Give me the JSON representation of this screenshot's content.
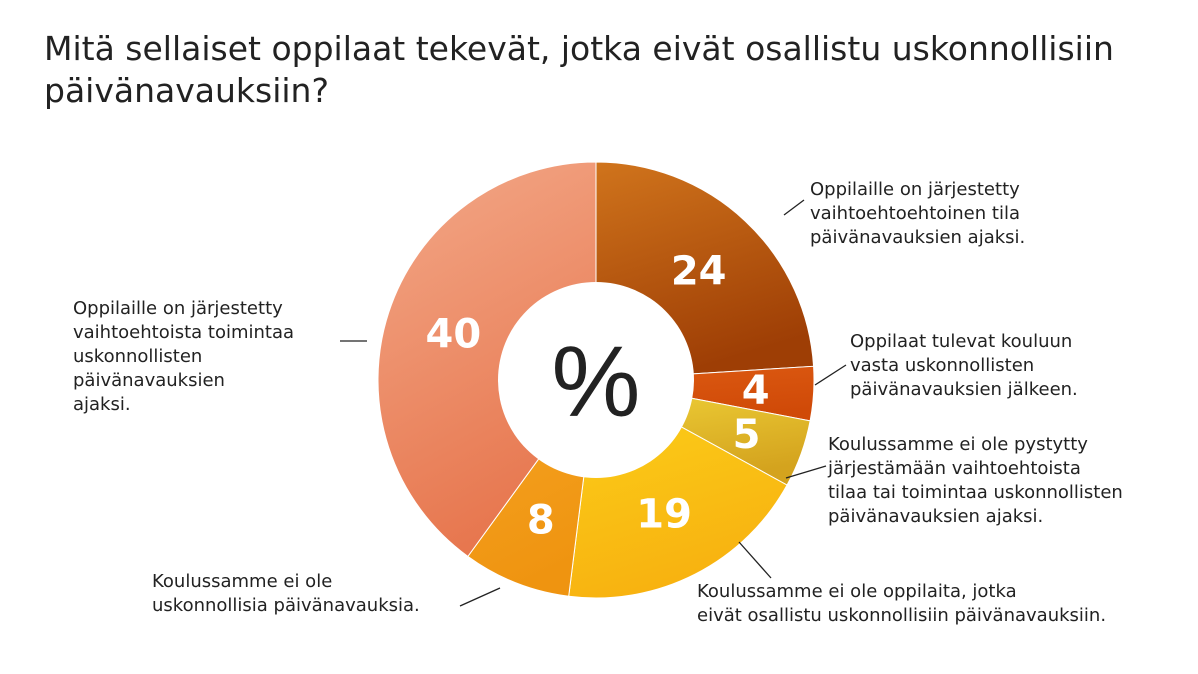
{
  "title": "Mitä sellaiset oppilaat tekevät, jotka eivät osallistu uskonnollisiin päivänavauksiin?",
  "center_label": "%",
  "chart_data": {
    "type": "pie",
    "style": "donut",
    "title": "Mitä sellaiset oppilaat tekevät, jotka eivät osallistu uskonnollisiin päivänavauksiin?",
    "unit": "%",
    "slices": [
      {
        "label": "Oppilaille on järjestetty vaihtoehtoehtoinen tila päivänavauksien ajaksi.",
        "value": 24,
        "color_start": "#d0741c",
        "color_end": "#9e3e05"
      },
      {
        "label": "Oppilaat tulevat kouluun vasta uskonnollisten päivänavauksien jälkeen.",
        "value": 4,
        "color_start": "#dc5a12",
        "color_end": "#d04a08"
      },
      {
        "label": "Koulussamme ei ole pystytty järjestämään vaihtoehtoista tilaa tai toimintaa uskonnollisten päivänavauksien ajaksi.",
        "value": 5,
        "color_start": "#f1d43a",
        "color_end": "#d4a31e"
      },
      {
        "label": "Koulussamme ei ole oppilaita, jotka eivät osallistu uskonnollisiin päivänavauksiin.",
        "value": 19,
        "color_start": "#fbd21a",
        "color_end": "#f8b210"
      },
      {
        "label": "Koulussamme ei ole uskonnollisia päivänavauksia.",
        "value": 8,
        "color_start": "#f6a424",
        "color_end": "#ef9410"
      },
      {
        "label": "Oppilaille on järjestetty vaihtoehtoista toimintaa uskonnollisten päivänavauksien ajaksi.",
        "value": 40,
        "color_start": "#f3a888",
        "color_end": "#e7774f"
      }
    ]
  },
  "callouts": [
    {
      "lines": [
        "Oppilaille on järjestetty",
        "vaihtoehtoehtoinen tila",
        "päivänavauksien ajaksi."
      ]
    },
    {
      "lines": [
        "Oppilaat tulevat kouluun",
        "vasta uskonnollisten",
        "päivänavauksien jälkeen."
      ]
    },
    {
      "lines": [
        "Koulussamme ei ole pystytty",
        "järjestämään vaihtoehtoista",
        "tilaa tai toimintaa uskonnollisten",
        "päivänavauksien ajaksi."
      ]
    },
    {
      "lines": [
        "Koulussamme ei ole oppilaita, jotka",
        "eivät osallistu uskonnollisiin päivänavauksiin."
      ]
    },
    {
      "lines": [
        "Koulussamme ei ole",
        "uskonnollisia päivänavauksia."
      ]
    },
    {
      "lines": [
        "Oppilaille on järjestetty",
        "vaihtoehtoista toimintaa",
        "uskonnollisten",
        "päivänavauksien",
        "ajaksi."
      ]
    }
  ]
}
